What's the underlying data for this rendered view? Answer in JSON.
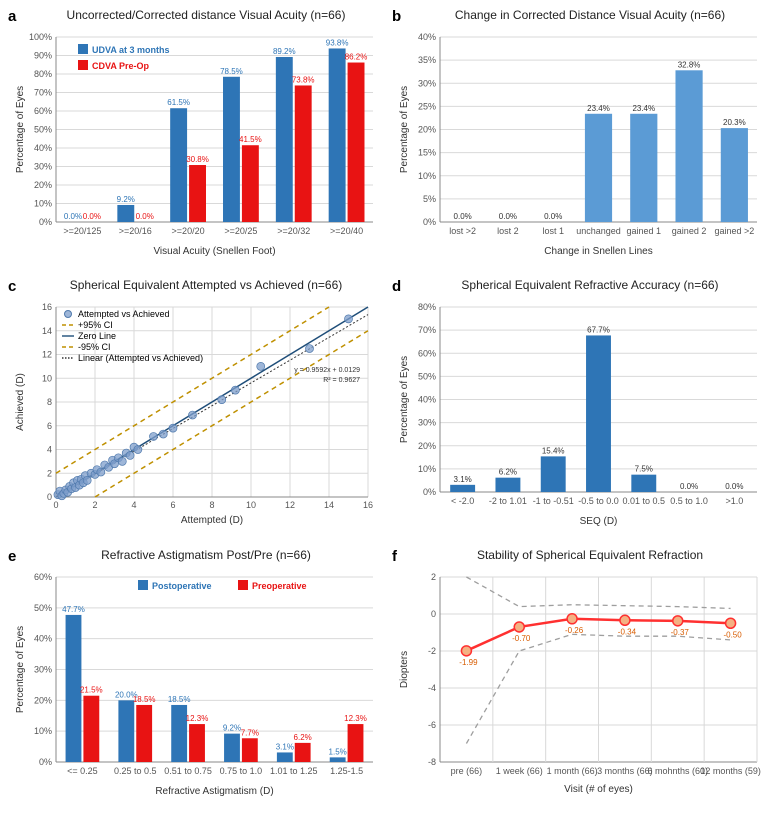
{
  "colors": {
    "blue": "#2e75b6",
    "lightblue": "#5b9bd5",
    "red": "#e81313",
    "darkblue": "#1f4e79",
    "scatter": "#7d9ecb",
    "ci": "#bf9000",
    "zeroline": "#1f4e79",
    "trend": "#333333",
    "line_red": "#ff3030",
    "line_marker": "#f4b183",
    "dash": "#9e9e9e",
    "grid": "#d9d9d9",
    "axis": "#888888"
  },
  "a": {
    "label": "a",
    "title": "Uncorrected/Corrected distance Visual Acuity (n=66)",
    "legend": [
      {
        "name": "UDVA at 3 months",
        "color": "#2e75b6"
      },
      {
        "name": "CDVA Pre-Op",
        "color": "#e81313"
      }
    ],
    "xlabel": "Visual Acuity (Snellen Foot)",
    "ylabel": "Percentage of Eyes",
    "ylim": [
      0,
      100
    ],
    "ytick_step": 10,
    "categories": [
      ">=20/125",
      ">=20/16",
      ">=20/20",
      ">=20/25",
      ">=20/32",
      ">=20/40"
    ],
    "series": [
      {
        "color": "#2e75b6",
        "values": [
          0,
          9.2,
          61.5,
          78.5,
          89.2,
          93.8
        ],
        "labels": [
          "0.0%",
          "9.2%",
          "61.5%",
          "78.5%",
          "89.2%",
          "93.8%"
        ]
      },
      {
        "color": "#e81313",
        "values": [
          0,
          0,
          30.8,
          41.5,
          73.8,
          86.2
        ],
        "labels": [
          "0.0%",
          "0.0%",
          "30.8%",
          "41.5%",
          "73.8%",
          "86.2%"
        ]
      }
    ]
  },
  "b": {
    "label": "b",
    "title": "Change in Corrected Distance Visual Acuity (n=66)",
    "xlabel": "Change in Snellen Lines",
    "ylabel": "Percentage of Eyes",
    "ylim": [
      0,
      40
    ],
    "ytick_step": 5,
    "categories": [
      "lost >2",
      "lost 2",
      "lost 1",
      "unchanged",
      "gained 1",
      "gained 2",
      "gained >2"
    ],
    "values": [
      0,
      0,
      0,
      23.4,
      23.4,
      32.8,
      20.3
    ],
    "labels": [
      "0.0%",
      "0.0%",
      "0.0%",
      "23.4%",
      "23.4%",
      "32.8%",
      "20.3%"
    ],
    "color": "#5b9bd5"
  },
  "c": {
    "label": "c",
    "title": "Spherical Equivalent Attempted vs Achieved  (n=66)",
    "xlabel": "Attempted (D)",
    "ylabel": "Achieved (D)",
    "xlim": [
      0,
      16
    ],
    "ylim": [
      0,
      16
    ],
    "tick_step": 2,
    "legend": [
      {
        "name": "Attempted vs Achieved",
        "type": "marker",
        "color": "#7d9ecb"
      },
      {
        "name": "+95% CI",
        "type": "dash",
        "color": "#bf9000"
      },
      {
        "name": "Zero Line",
        "type": "line",
        "color": "#1f4e79"
      },
      {
        "name": "-95% CI",
        "type": "dash",
        "color": "#bf9000"
      },
      {
        "name": "Linear (Attempted vs Achieved)",
        "type": "dots",
        "color": "#333333"
      }
    ],
    "equation": "y = 0.9592x + 0.0129",
    "r2": "R² = 0.9627",
    "points": [
      [
        0.1,
        0.2
      ],
      [
        0.2,
        0.5
      ],
      [
        0.3,
        0.1
      ],
      [
        0.4,
        0.3
      ],
      [
        0.5,
        0.6
      ],
      [
        0.6,
        0.4
      ],
      [
        0.7,
        0.9
      ],
      [
        0.8,
        0.7
      ],
      [
        0.9,
        1.2
      ],
      [
        1.0,
        0.8
      ],
      [
        1.1,
        1.4
      ],
      [
        1.2,
        1.0
      ],
      [
        1.3,
        1.5
      ],
      [
        1.4,
        1.2
      ],
      [
        1.5,
        1.8
      ],
      [
        1.6,
        1.4
      ],
      [
        1.8,
        2.0
      ],
      [
        2.0,
        1.9
      ],
      [
        2.1,
        2.3
      ],
      [
        2.3,
        2.1
      ],
      [
        2.5,
        2.7
      ],
      [
        2.7,
        2.5
      ],
      [
        2.9,
        3.1
      ],
      [
        3.0,
        2.8
      ],
      [
        3.2,
        3.3
      ],
      [
        3.4,
        3.0
      ],
      [
        3.6,
        3.7
      ],
      [
        3.8,
        3.5
      ],
      [
        4.0,
        4.2
      ],
      [
        4.2,
        4.0
      ],
      [
        5.0,
        5.1
      ],
      [
        5.5,
        5.3
      ],
      [
        6.0,
        5.8
      ],
      [
        7.0,
        6.9
      ],
      [
        8.5,
        8.2
      ],
      [
        9.2,
        9.0
      ],
      [
        10.5,
        11.0
      ],
      [
        13.0,
        12.5
      ],
      [
        15.0,
        15.0
      ]
    ]
  },
  "d": {
    "label": "d",
    "title": "Spherical Equivalent Refractive Accuracy (n=66)",
    "xlabel": "SEQ (D)",
    "ylabel": "Percentage of Eyes",
    "ylim": [
      0,
      80
    ],
    "ytick_step": 10,
    "categories": [
      "< -2.0",
      "-2 to 1.01",
      "-1 to -0.51",
      "-0.5 to 0.0",
      "0.01 to 0.5",
      "0.5 to 1.0",
      ">1.0"
    ],
    "values": [
      3.1,
      6.2,
      15.4,
      67.7,
      7.5,
      0,
      0
    ],
    "labels": [
      "3.1%",
      "6.2%",
      "15.4%",
      "67.7%",
      "7.5%",
      "0.0%",
      "0.0%"
    ],
    "color": "#2e75b6"
  },
  "e": {
    "label": "e",
    "title": "Refractive Astigmatism Post/Pre (n=66)",
    "legend": [
      {
        "name": "Postoperative",
        "color": "#2e75b6"
      },
      {
        "name": "Preoperative",
        "color": "#e81313"
      }
    ],
    "xlabel": "Refractive Astigmatism (D)",
    "ylabel": "Percentage of Eyes",
    "ylim": [
      0,
      60
    ],
    "ytick_step": 10,
    "categories": [
      "<= 0.25",
      "0.25 to 0.5",
      "0.51 to 0.75",
      "0.75 to 1.0",
      "1.01 to 1.25",
      "1.25-1.5"
    ],
    "series": [
      {
        "color": "#2e75b6",
        "values": [
          47.7,
          20.0,
          18.5,
          9.2,
          3.1,
          1.5
        ],
        "labels": [
          "47.7%",
          "20.0%",
          "18.5%",
          "9.2%",
          "3.1%",
          "1.5%"
        ]
      },
      {
        "color": "#e81313",
        "values": [
          21.5,
          18.5,
          12.3,
          7.7,
          6.2,
          12.3
        ],
        "labels": [
          "21.5%",
          "18.5%",
          "12.3%",
          "7.7%",
          "6.2%",
          "12.3%"
        ]
      }
    ]
  },
  "f": {
    "label": "f",
    "title": "Stability of Spherical Equivalent Refraction",
    "xlabel": "Visit (# of eyes)",
    "ylabel": "Diopters",
    "ylim": [
      -8,
      2
    ],
    "ytick_step": 2,
    "categories": [
      "pre (66)",
      "1 week (66)",
      "1 month (66)",
      "3 months (66)",
      "6 mohnths (60)",
      "12 months (59)"
    ],
    "mean": [
      -1.99,
      -0.7,
      -0.26,
      -0.34,
      -0.37,
      -0.5
    ],
    "labels": [
      "-1.99",
      "-0.70",
      "-0.26",
      "-0.34",
      "-0.37",
      "-0.50"
    ],
    "upper": [
      2.0,
      0.4,
      0.5,
      0.45,
      0.4,
      0.3
    ],
    "lower": [
      -7.0,
      -2.0,
      -1.1,
      -1.2,
      -1.2,
      -1.4
    ]
  }
}
